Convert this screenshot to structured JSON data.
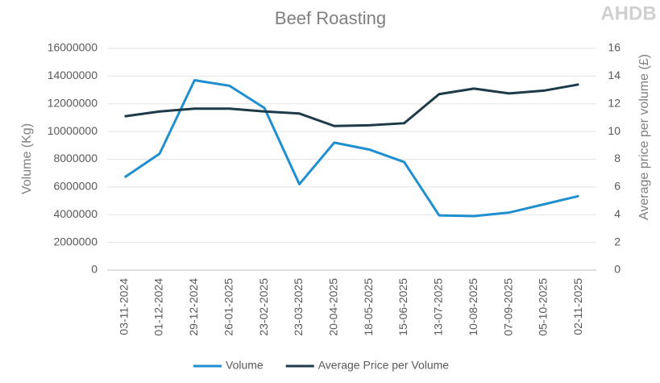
{
  "chart_data": {
    "type": "line",
    "title": "Beef Roasting",
    "logo": "AHDB",
    "y_label": "Volume (Kg)",
    "y2_label": "Average price per volume (£)",
    "categories": [
      "03-11-2024",
      "01-12-2024",
      "29-12-2024",
      "26-01-2025",
      "23-02-2025",
      "23-03-2025",
      "20-04-2025",
      "18-05-2025",
      "15-06-2025",
      "13-07-2025",
      "10-08-2025",
      "07-09-2025",
      "05-10-2025",
      "02-11-2025"
    ],
    "series": [
      {
        "name": "Volume",
        "color": "#1f8fcf",
        "values": [
          6700000,
          8400000,
          13700000,
          13300000,
          11700000,
          6200000,
          9200000,
          8700000,
          7800000,
          3950000,
          3900000,
          4150000,
          4750000,
          5350000
        ]
      },
      {
        "name": "Average Price per Volume",
        "color": "#1d3a48",
        "axis": "y2",
        "values": [
          11.1,
          11.45,
          11.65,
          11.65,
          11.45,
          11.3,
          10.4,
          10.45,
          10.6,
          12.7,
          13.1,
          12.75,
          12.95,
          13.4
        ]
      }
    ],
    "ylim": [
      0,
      16000000
    ],
    "yticks": [
      0,
      2000000,
      4000000,
      6000000,
      8000000,
      10000000,
      12000000,
      14000000,
      16000000
    ],
    "y2lim": [
      0,
      16
    ],
    "y2ticks": [
      0,
      2,
      4,
      6,
      8,
      10,
      12,
      14,
      16
    ],
    "grid": true,
    "legend": "bottom"
  }
}
